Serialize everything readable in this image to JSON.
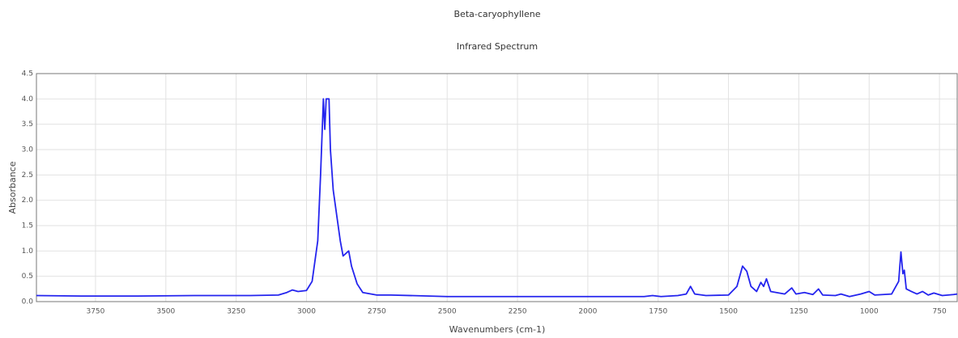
{
  "chart_data": {
    "type": "line",
    "title": "Beta-caryophyllene",
    "subtitle": "Infrared Spectrum",
    "x_label": "Wavenumbers (cm-1)",
    "y_label": "Absorbance",
    "x": [
      3960,
      3800,
      3600,
      3400,
      3200,
      3100,
      3070,
      3050,
      3030,
      3000,
      2980,
      2960,
      2950,
      2940,
      2935,
      2930,
      2920,
      2915,
      2905,
      2895,
      2880,
      2870,
      2860,
      2850,
      2840,
      2820,
      2800,
      2750,
      2700,
      2500,
      2200,
      2000,
      1800,
      1770,
      1740,
      1680,
      1650,
      1635,
      1620,
      1580,
      1500,
      1470,
      1450,
      1435,
      1420,
      1400,
      1385,
      1375,
      1365,
      1350,
      1300,
      1275,
      1260,
      1230,
      1200,
      1180,
      1165,
      1120,
      1100,
      1070,
      1030,
      1000,
      980,
      920,
      895,
      887,
      880,
      875,
      868,
      850,
      830,
      810,
      790,
      770,
      740,
      700,
      687
    ],
    "values": [
      0.12,
      0.11,
      0.11,
      0.12,
      0.12,
      0.13,
      0.18,
      0.23,
      0.2,
      0.22,
      0.4,
      1.2,
      2.5,
      4.0,
      3.4,
      4.0,
      4.0,
      3.0,
      2.2,
      1.8,
      1.2,
      0.9,
      0.95,
      1.0,
      0.7,
      0.35,
      0.18,
      0.13,
      0.13,
      0.1,
      0.1,
      0.1,
      0.1,
      0.12,
      0.1,
      0.12,
      0.15,
      0.3,
      0.15,
      0.12,
      0.13,
      0.3,
      0.7,
      0.6,
      0.3,
      0.2,
      0.38,
      0.3,
      0.45,
      0.2,
      0.15,
      0.27,
      0.15,
      0.18,
      0.14,
      0.25,
      0.13,
      0.12,
      0.15,
      0.1,
      0.15,
      0.2,
      0.13,
      0.15,
      0.4,
      0.98,
      0.55,
      0.62,
      0.25,
      0.2,
      0.15,
      0.2,
      0.13,
      0.17,
      0.12,
      0.14,
      0.15
    ],
    "color": "#2424ee",
    "xlim": [
      3960,
      687
    ],
    "xticks": [
      3750,
      3500,
      3250,
      3000,
      2750,
      2500,
      2250,
      2000,
      1750,
      1500,
      1250,
      1000,
      750
    ],
    "ylim": [
      0,
      4.5
    ],
    "yticks": [
      {
        "value": 0,
        "label": "0.0"
      },
      0.5,
      {
        "value": 1,
        "label": "1.0"
      },
      1.5,
      {
        "value": 2,
        "label": "2.0"
      },
      2.5,
      {
        "value": 3,
        "label": "3.0"
      },
      3.5,
      {
        "value": 4,
        "label": "4.0"
      },
      4.5
    ],
    "grid": true
  }
}
